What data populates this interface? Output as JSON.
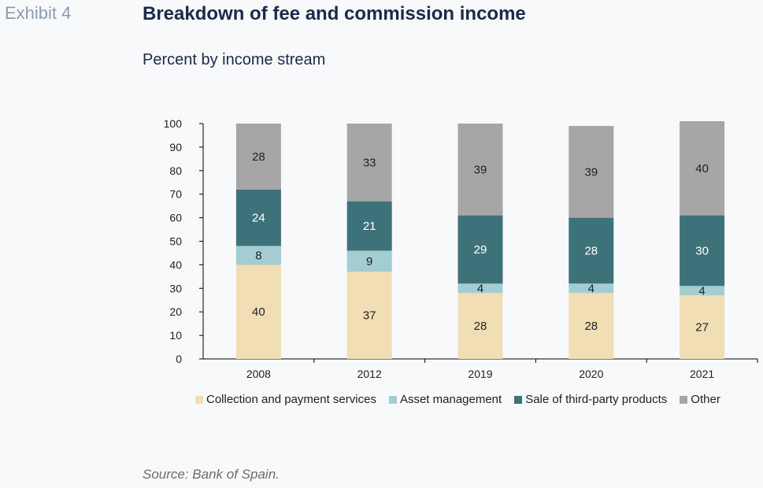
{
  "header": {
    "exhibit": "Exhibit 4",
    "title": "Breakdown of fee and commission income",
    "subtitle": "Percent by income stream"
  },
  "source": "Source: Bank of Spain.",
  "chart_data": {
    "type": "bar",
    "stacked": true,
    "title": "Breakdown of fee and commission income",
    "subtitle": "Percent by income stream",
    "categories": [
      "2008",
      "2012",
      "2019",
      "2020",
      "2021"
    ],
    "ylim": [
      0,
      100
    ],
    "yticks": [
      0,
      10,
      20,
      30,
      40,
      50,
      60,
      70,
      80,
      90,
      100
    ],
    "grid": false,
    "legend_position": "bottom",
    "series": [
      {
        "name": "Collection and payment services",
        "color": "#f1deb5",
        "values": [
          40,
          37,
          28,
          28,
          27
        ]
      },
      {
        "name": "Asset management",
        "color": "#a3cdd2",
        "values": [
          8,
          9,
          4,
          4,
          4
        ]
      },
      {
        "name": "Sale of third-party products",
        "color": "#3e727a",
        "values": [
          24,
          21,
          29,
          28,
          30
        ]
      },
      {
        "name": "Other",
        "color": "#a6a6a6",
        "values": [
          28,
          33,
          39,
          39,
          40
        ]
      }
    ]
  }
}
